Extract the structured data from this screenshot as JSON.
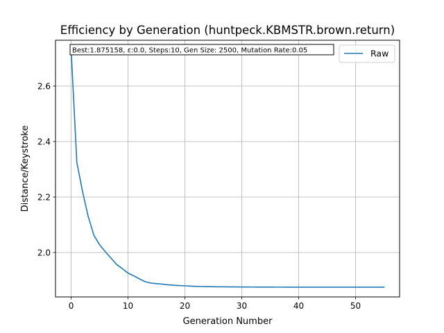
{
  "chart_data": {
    "type": "line",
    "title": "Efficiency by Generation (huntpeck.KBMSTR.brown.return)",
    "xlabel": "Generation Number",
    "ylabel": "Distance/Keystroke",
    "xlim": [
      -2.75,
      57.75
    ],
    "ylim": [
      1.84,
      2.765
    ],
    "xticks": [
      0,
      10,
      20,
      30,
      40,
      50
    ],
    "xtick_labels": [
      "0",
      "10",
      "20",
      "30",
      "40",
      "50"
    ],
    "yticks": [
      2.0,
      2.2,
      2.4,
      2.6
    ],
    "ytick_labels": [
      "2.0",
      "2.2",
      "2.4",
      "2.6"
    ],
    "grid": true,
    "legend_position": "top-right",
    "annotation": "Best:1.875158, ε:0.0, Steps:10, Gen Size: 2500, Mutation Rate:0.05",
    "series": [
      {
        "name": "Raw",
        "color": "#1f77b4",
        "x": [
          0,
          1,
          2,
          3,
          4,
          5,
          6,
          7,
          8,
          9,
          10,
          11,
          12,
          13,
          14,
          15,
          16,
          17,
          18,
          19,
          20,
          21,
          22,
          23,
          24,
          25,
          26,
          27,
          28,
          29,
          30,
          31,
          32,
          33,
          34,
          35,
          36,
          37,
          38,
          39,
          40,
          41,
          42,
          43,
          44,
          45,
          46,
          47,
          48,
          49,
          50,
          51,
          52,
          53,
          54,
          55
        ],
        "y": [
          2.73,
          2.325,
          2.22,
          2.13,
          2.062,
          2.028,
          2.003,
          1.98,
          1.957,
          1.942,
          1.926,
          1.916,
          1.905,
          1.895,
          1.89,
          1.888,
          1.886,
          1.884,
          1.882,
          1.881,
          1.88,
          1.879,
          1.878,
          1.8775,
          1.877,
          1.8768,
          1.8765,
          1.8763,
          1.8761,
          1.876,
          1.8758,
          1.8757,
          1.8756,
          1.8755,
          1.8754,
          1.8754,
          1.8753,
          1.8753,
          1.8752,
          1.8752,
          1.8752,
          1.8752,
          1.8752,
          1.8752,
          1.8752,
          1.8752,
          1.8752,
          1.8752,
          1.8752,
          1.8752,
          1.8752,
          1.8752,
          1.8752,
          1.8752,
          1.8752,
          1.8752
        ]
      }
    ]
  }
}
